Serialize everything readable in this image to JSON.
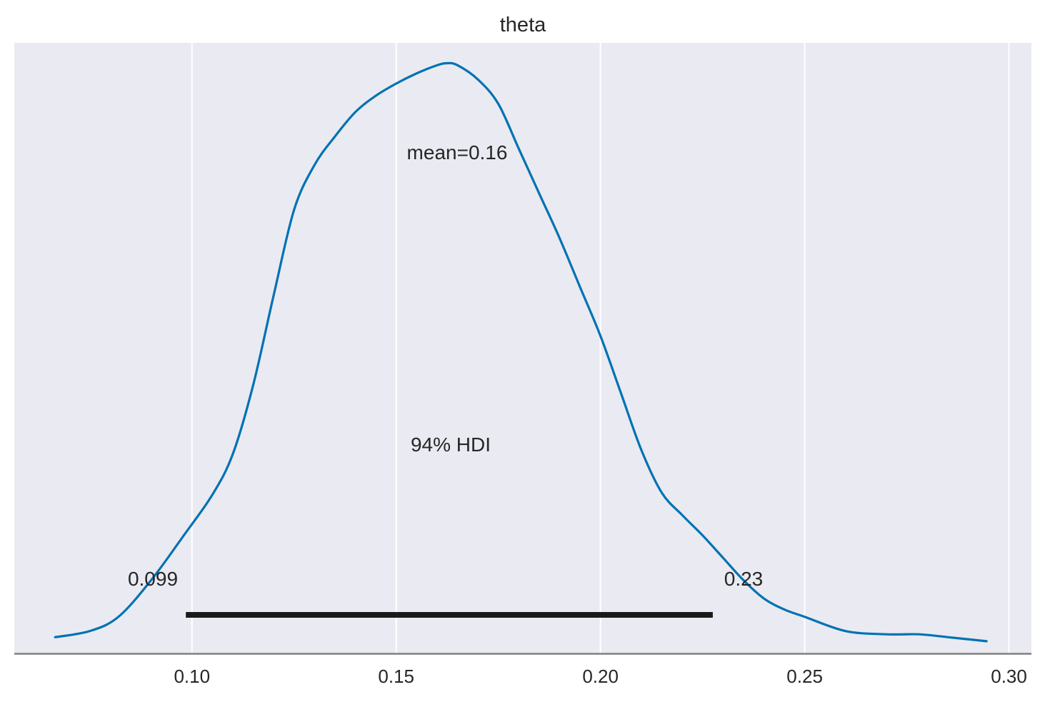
{
  "chart_data": {
    "type": "area",
    "title": "theta",
    "xlabel": "",
    "ylabel": "",
    "xlim": [
      0.0565,
      0.3055
    ],
    "ylim": [
      -0.4,
      14.6
    ],
    "grid": "x",
    "x_ticks": [
      0.1,
      0.15,
      0.2,
      0.25,
      0.3
    ],
    "x_tick_labels": [
      "0.10",
      "0.15",
      "0.20",
      "0.25",
      "0.30"
    ],
    "density": {
      "x": [
        0.0665,
        0.075,
        0.082,
        0.09,
        0.098,
        0.105,
        0.11,
        0.115,
        0.12,
        0.125,
        0.13,
        0.135,
        0.14,
        0.145,
        0.15,
        0.155,
        0.16,
        0.1625,
        0.165,
        0.17,
        0.175,
        0.18,
        0.185,
        0.19,
        0.195,
        0.2,
        0.205,
        0.21,
        0.215,
        0.22,
        0.225,
        0.23,
        0.235,
        0.24,
        0.245,
        0.25,
        0.26,
        0.27,
        0.278,
        0.285,
        0.2945
      ],
      "y": [
        0.0,
        0.15,
        0.5,
        1.4,
        2.5,
        3.5,
        4.5,
        6.2,
        8.4,
        10.5,
        11.6,
        12.3,
        12.9,
        13.3,
        13.6,
        13.85,
        14.05,
        14.1,
        14.05,
        13.7,
        13.1,
        12.0,
        10.9,
        9.8,
        8.6,
        7.4,
        6.0,
        4.6,
        3.55,
        3.0,
        2.5,
        1.95,
        1.4,
        0.95,
        0.68,
        0.5,
        0.15,
        0.07,
        0.07,
        0.0,
        -0.1
      ]
    },
    "annotations": {
      "mean_label": "mean=0.16",
      "hdi_label": "94% HDI",
      "hdi_low_label": "0.099",
      "hdi_high_label": "0.23"
    },
    "hdi": [
      0.0985,
      0.2275
    ],
    "colors": {
      "background": "#eaeaf2",
      "curve": "#0072b2",
      "hdi_bar": "#1a1a1a",
      "grid": "#ffffff",
      "axis": "#808080",
      "text": "#262626"
    }
  }
}
